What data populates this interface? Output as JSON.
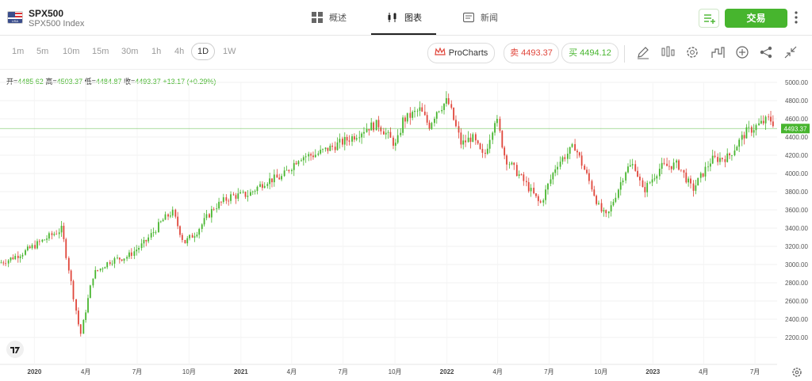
{
  "header": {
    "symbol": "SPX500",
    "full_name": "SPX500 Index",
    "flag_label": "USA",
    "tabs": [
      {
        "label": "概述",
        "icon": "grid-icon"
      },
      {
        "label": "图表",
        "icon": "candlestick-icon"
      },
      {
        "label": "新闻",
        "icon": "news-icon"
      }
    ],
    "active_tab": "图表",
    "trade_label": "交易"
  },
  "toolbar": {
    "timeframes": [
      "1m",
      "5m",
      "10m",
      "15m",
      "30m",
      "1h",
      "4h",
      "1D",
      "1W"
    ],
    "selected_timeframe": "1D",
    "prochart_label": "ProCharts",
    "sell_label": "卖 4493.37",
    "buy_label": "买 4494.12",
    "tools": [
      "pencil-icon",
      "indicator-icon",
      "gear-icon",
      "bar-chart-icon",
      "add-icon",
      "share-icon",
      "collapse-icon"
    ]
  },
  "ohlc": {
    "open_label": "开=",
    "open": "4485.62",
    "high_label": "高=",
    "high": "4503.37",
    "low_label": "低=",
    "low": "4484.87",
    "close_label": "收=",
    "close": "4493.37",
    "change": "+13.17 (+0.29%)"
  },
  "colors": {
    "up": "#47b52e",
    "down": "#e0463b",
    "accent": "#47b52e",
    "sell": "#e0463b"
  },
  "chart_data": {
    "type": "line",
    "title": "",
    "xlabel": "",
    "ylabel": "",
    "ylim": [
      1850,
      5050
    ],
    "y_ticks": [
      2200,
      2400,
      2600,
      2800,
      3000,
      3200,
      3400,
      3600,
      3800,
      4000,
      4200,
      4400,
      4600,
      4800,
      5000
    ],
    "y_tick_labels": [
      "2200.00",
      "2400.00",
      "2600.00",
      "2800.00",
      "3000.00",
      "3200.00",
      "3400.00",
      "3600.00",
      "3800.00",
      "4000.00",
      "4200.00",
      "4400.00",
      "4600.00",
      "4800.00",
      "5000.00"
    ],
    "x_ticks": [
      "2020",
      "4月",
      "7月",
      "10月",
      "2021",
      "4月",
      "7月",
      "10月",
      "2022",
      "4月",
      "7月",
      "10月",
      "2023",
      "4月",
      "7月"
    ],
    "current_price_label": "4493.37",
    "current_price": 4493.37,
    "grid": true,
    "series": [
      {
        "dates": [
          "2019-10",
          "2019-11",
          "2019-12",
          "2020-01",
          "2020-02-19",
          "2020-03-23",
          "2020-04",
          "2020-05",
          "2020-06",
          "2020-07",
          "2020-08",
          "2020-09-02",
          "2020-09-23",
          "2020-10",
          "2020-11",
          "2020-12",
          "2021-01",
          "2021-02",
          "2021-03",
          "2021-04",
          "2021-05",
          "2021-06",
          "2021-07",
          "2021-08",
          "2021-09-02",
          "2021-10-04",
          "2021-10",
          "2021-11",
          "2021-12-01",
          "2021-12",
          "2022-01-03",
          "2022-01-27",
          "2022-02",
          "2022-03-08",
          "2022-03-29",
          "2022-04",
          "2022-05-20",
          "2022-06-16",
          "2022-07",
          "2022-08-16",
          "2022-09",
          "2022-09-30",
          "2022-10-12",
          "2022-11",
          "2022-11-30",
          "2022-12",
          "2023-01",
          "2023-02",
          "2023-03-13",
          "2023-04",
          "2023-05",
          "2023-06",
          "2023-07-27",
          "2023-08"
        ],
        "values": [
          2980,
          3050,
          3140,
          3260,
          3390,
          2220,
          2900,
          3040,
          3090,
          3240,
          3480,
          3580,
          3240,
          3360,
          3630,
          3750,
          3770,
          3920,
          3960,
          4180,
          4210,
          4300,
          4390,
          4510,
          4540,
          4300,
          4580,
          4700,
          4520,
          4700,
          4800,
          4320,
          4400,
          4170,
          4630,
          4170,
          3900,
          3660,
          4100,
          4300,
          3850,
          3600,
          3520,
          4050,
          4100,
          3800,
          4070,
          4100,
          3820,
          4150,
          4180,
          4450,
          4600,
          4490
        ]
      }
    ]
  }
}
